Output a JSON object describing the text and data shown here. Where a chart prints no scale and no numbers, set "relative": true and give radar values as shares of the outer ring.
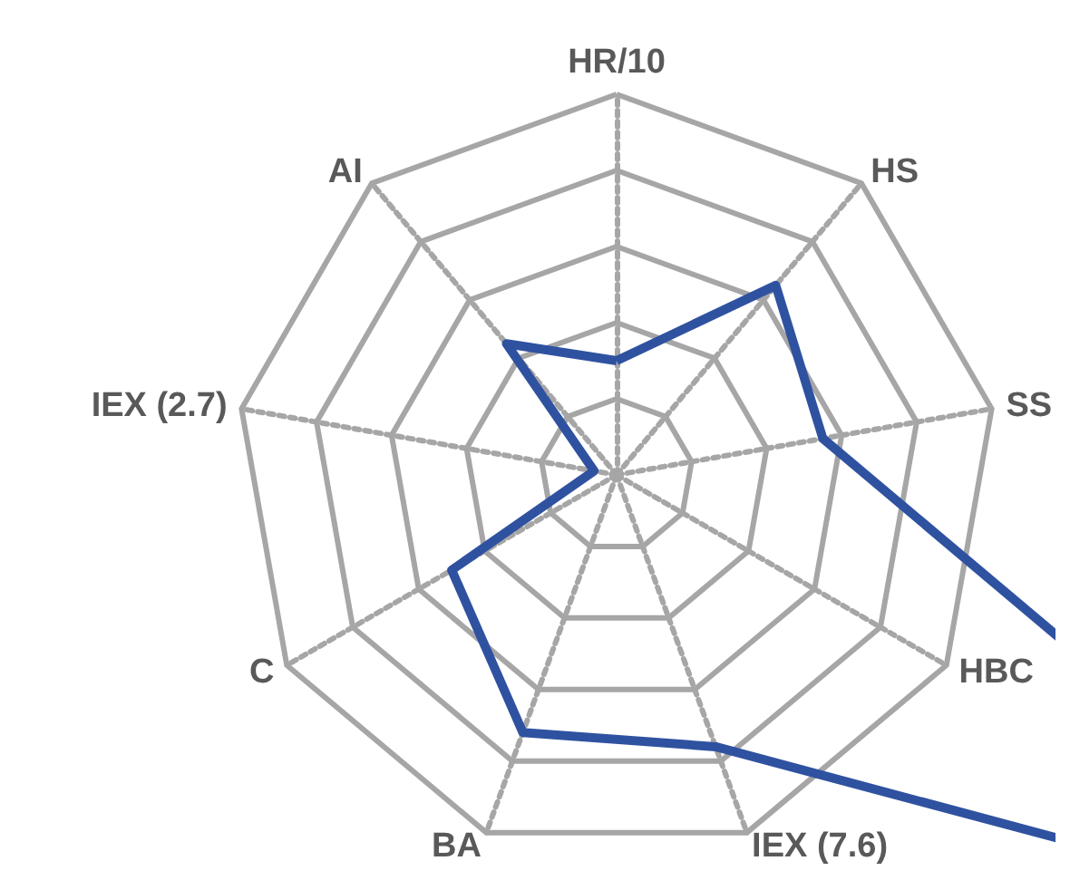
{
  "chart_data": {
    "type": "radar",
    "relative": true,
    "categories": [
      "HR/10",
      "HS",
      "SS",
      "HBC",
      "IEX (7.6)",
      "BA",
      "C",
      "IEX (2.7)",
      "AI"
    ],
    "series": [
      {
        "color": "#2f52a0",
        "values": [
          0.3,
          0.65,
          0.55,
          2.4,
          0.76,
          0.72,
          0.5,
          0.06,
          0.45
        ]
      }
    ],
    "marker": "none",
    "line_style": "solid"
  }
}
